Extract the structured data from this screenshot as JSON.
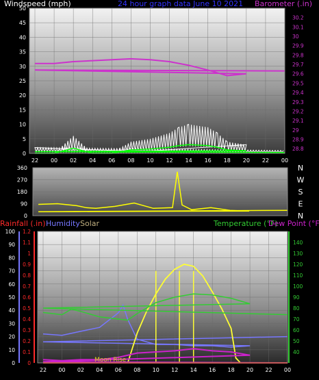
{
  "header": {
    "wind_label": "Windspeed (mph)",
    "title": "24 hour graph data   June 10 2021",
    "baro_label": "Barometer (.in)"
  },
  "panel3_header": {
    "rain_label": "Rainfall (.in)",
    "humidity_label": "Humidity",
    "solar_label": "Solar",
    "temp_label": "Temperature (°F)",
    "dew_label": "Dew Point (°F)"
  },
  "annotations": {
    "moon_rise": "Moon Rise"
  },
  "colors": {
    "wind": "#ffffff",
    "wind_avg": "#00ff00",
    "baro": "#cc33cc",
    "direction": "#ffff00",
    "rain": "#ff2a2a",
    "humidity": "#7777ff",
    "solar": "#ffff33",
    "temp": "#33cc33",
    "dew": "#cc22cc",
    "title": "#3333ff"
  },
  "chart_data": [
    {
      "type": "line",
      "name": "wind-barometer",
      "xlabel": "",
      "x_ticks": [
        "22",
        "00",
        "02",
        "04",
        "06",
        "08",
        "10",
        "12",
        "14",
        "16",
        "18",
        "20",
        "22",
        "00"
      ],
      "y_left": {
        "label": "Windspeed (mph)",
        "ticks": [
          0,
          5,
          10,
          15,
          20,
          25,
          30,
          35,
          40,
          45,
          50
        ],
        "lim": [
          0,
          50
        ]
      },
      "y_right": {
        "label": "Barometer (.in)",
        "ticks": [
          "28.8",
          "28.9",
          "29",
          "29.1",
          "29.2",
          "29.3",
          "29.4",
          "29.5",
          "29.6",
          "29.7",
          "29.8",
          "29.9",
          "30",
          "30.1",
          "30.2"
        ],
        "lim": [
          28.75,
          30.3
        ]
      },
      "series": [
        {
          "name": "Windspeed (mph)",
          "x": [
            22,
            0,
            2,
            4,
            6,
            8,
            10,
            12,
            13,
            14,
            16,
            17,
            18,
            20,
            22,
            24
          ],
          "values": [
            0,
            0,
            6,
            0,
            0,
            4,
            5,
            7,
            9,
            10,
            9,
            7,
            4,
            3,
            2,
            1
          ]
        },
        {
          "name": "Barometer (.in)",
          "x": [
            22,
            0,
            2,
            4,
            6,
            8,
            10,
            12,
            14,
            16,
            18,
            20,
            22,
            24
          ],
          "values": [
            29.71,
            29.71,
            29.73,
            29.74,
            29.75,
            29.76,
            29.75,
            29.73,
            29.69,
            29.64,
            29.58,
            29.6,
            29.64,
            29.63
          ]
        }
      ]
    },
    {
      "type": "line",
      "name": "wind-direction",
      "x_ticks": [
        "22",
        "00",
        "02",
        "04",
        "06",
        "08",
        "10",
        "12",
        "14",
        "16",
        "18",
        "20",
        "22",
        "00"
      ],
      "y_left": {
        "ticks": [
          0,
          45,
          90,
          135,
          180,
          225,
          270,
          315,
          360
        ],
        "lim": [
          0,
          360
        ]
      },
      "y_right": {
        "ticks": [
          "N",
          "W",
          "S",
          "E",
          "N"
        ]
      },
      "series": [
        {
          "name": "Wind direction",
          "x": [
            22,
            0,
            2,
            3,
            4,
            6,
            8,
            10,
            12,
            12.5,
            13,
            14,
            16,
            18,
            20,
            22,
            24
          ],
          "values": [
            85,
            90,
            75,
            60,
            55,
            70,
            95,
            55,
            60,
            330,
            80,
            45,
            60,
            40,
            35,
            30,
            40
          ]
        }
      ]
    },
    {
      "type": "line",
      "name": "temperature-humidity",
      "x_ticks": [
        "22",
        "00",
        "02",
        "04",
        "06",
        "08",
        "10",
        "12",
        "14",
        "16",
        "18",
        "20",
        "22",
        "00"
      ],
      "y_humidity": {
        "label": "Humidity",
        "ticks": [
          0,
          10,
          20,
          30,
          40,
          50,
          60,
          70,
          80,
          90,
          100
        ],
        "lim": [
          0,
          100
        ]
      },
      "y_rain": {
        "label": "Rainfall (.in)",
        "ticks": [
          "0",
          "0.1",
          "0.2",
          "0.3",
          "0.4",
          "0.5",
          "0.6",
          "0.7",
          "0.8",
          "0.9",
          "1",
          "1.1",
          "1.2"
        ],
        "lim": [
          0,
          1.2
        ]
      },
      "y_temp": {
        "label": "Temperature (°F)",
        "ticks": [
          40,
          50,
          60,
          70,
          80,
          90,
          100,
          110,
          120,
          130,
          140
        ],
        "lim": [
          30,
          150
        ]
      },
      "series": [
        {
          "name": "Temperature (°F)",
          "x": [
            22,
            0,
            1,
            2,
            4,
            6,
            7,
            8,
            10,
            12,
            14,
            16,
            18,
            20,
            22,
            24
          ],
          "values": [
            76,
            74,
            79,
            77,
            72,
            70,
            69,
            75,
            85,
            90,
            93,
            92,
            89,
            84,
            80,
            74
          ]
        },
        {
          "name": "Dew Point (°F)",
          "x": [
            22,
            0,
            2,
            4,
            6,
            8,
            10,
            12,
            14,
            16,
            18,
            20,
            22,
            24
          ],
          "values": [
            33,
            32,
            33,
            33,
            35,
            39,
            40,
            41,
            43,
            41,
            40,
            37,
            31,
            30
          ]
        },
        {
          "name": "Humidity",
          "x": [
            22,
            0,
            2,
            4,
            6,
            6.5,
            7,
            8,
            10,
            12,
            14,
            16,
            18,
            20,
            22,
            24
          ],
          "values": [
            22,
            21,
            24,
            27,
            38,
            44,
            33,
            18,
            14,
            14,
            13,
            13,
            12,
            13,
            16,
            20
          ]
        },
        {
          "name": "Solar",
          "x": [
            22,
            7,
            8,
            9,
            10,
            11,
            12,
            13,
            14,
            15,
            16,
            17,
            18,
            18.5,
            19,
            24
          ],
          "values": [
            0,
            0,
            30,
            52,
            70,
            85,
            95,
            100,
            98,
            88,
            72,
            55,
            35,
            5,
            0,
            0
          ]
        },
        {
          "name": "Rainfall (.in)",
          "x": [
            22,
            24
          ],
          "values": [
            0,
            0
          ]
        }
      ]
    }
  ]
}
